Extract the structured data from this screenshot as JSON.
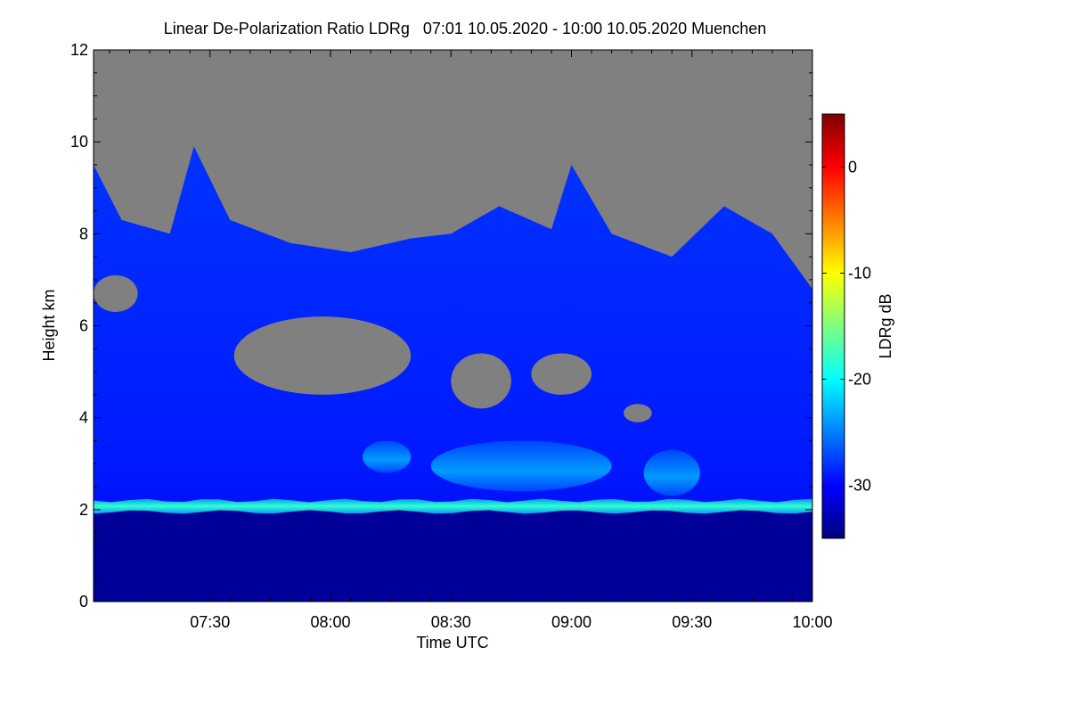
{
  "chart_data": {
    "type": "heatmap",
    "title": "Linear De-Polarization Ratio LDRg   07:01 10.05.2020 - 10:00 10.05.2020 Muenchen",
    "xlabel": "Time UTC",
    "ylabel": "Height km",
    "colorbar_label": "LDRg dB",
    "x_range": [
      "07:01",
      "10:00"
    ],
    "x_ticks": [
      "07:30",
      "08:00",
      "08:30",
      "09:00",
      "09:30",
      "10:00"
    ],
    "y_range": [
      0,
      12
    ],
    "y_ticks": [
      "0",
      "2",
      "4",
      "6",
      "8",
      "10",
      "12"
    ],
    "colorbar_range": [
      -35,
      5
    ],
    "colorbar_ticks": [
      "0",
      "-10",
      "-20",
      "-30"
    ],
    "colormap": [
      "#00007f",
      "#0000ff",
      "#007fff",
      "#00ffff",
      "#7fff7f",
      "#ffff00",
      "#ff7f00",
      "#ff0000",
      "#7f0000"
    ],
    "no_data_color": "#808080",
    "features": {
      "cloud_top_profile_km": [
        {
          "time": "07:01",
          "height": 9.5
        },
        {
          "time": "07:08",
          "height": 8.3
        },
        {
          "time": "07:20",
          "height": 8.0
        },
        {
          "time": "07:26",
          "height": 9.9
        },
        {
          "time": "07:35",
          "height": 8.3
        },
        {
          "time": "07:50",
          "height": 7.8
        },
        {
          "time": "08:05",
          "height": 7.6
        },
        {
          "time": "08:20",
          "height": 7.9
        },
        {
          "time": "08:30",
          "height": 8.0
        },
        {
          "time": "08:42",
          "height": 8.6
        },
        {
          "time": "08:55",
          "height": 8.1
        },
        {
          "time": "09:00",
          "height": 9.5
        },
        {
          "time": "09:10",
          "height": 8.0
        },
        {
          "time": "09:25",
          "height": 7.5
        },
        {
          "time": "09:38",
          "height": 8.6
        },
        {
          "time": "09:50",
          "height": 8.0
        },
        {
          "time": "10:00",
          "height": 6.8
        }
      ],
      "boundary_layer_top_km": 2.1,
      "boundary_layer_ldr_db": -18,
      "cirrus_ldr_db": -29,
      "below_layer_ldr_db": -34,
      "clear_pockets": [
        {
          "time_start": "07:01",
          "time_end": "07:12",
          "height_low": 6.3,
          "height_high": 7.1
        },
        {
          "time_start": "07:36",
          "time_end": "08:20",
          "height_low": 4.5,
          "height_high": 6.2
        },
        {
          "time_start": "08:30",
          "time_end": "08:45",
          "height_low": 4.2,
          "height_high": 5.4
        },
        {
          "time_start": "08:50",
          "time_end": "09:05",
          "height_low": 4.5,
          "height_high": 5.4
        },
        {
          "time_start": "09:13",
          "time_end": "09:20",
          "height_low": 3.9,
          "height_high": 4.3
        }
      ],
      "mid_level_enhanced_ldr": [
        {
          "time_start": "08:08",
          "time_end": "08:20",
          "height_low": 2.8,
          "height_high": 3.5
        },
        {
          "time_start": "08:25",
          "time_end": "09:10",
          "height_low": 2.4,
          "height_high": 3.5
        },
        {
          "time_start": "09:18",
          "time_end": "09:32",
          "height_low": 2.3,
          "height_high": 3.3
        }
      ]
    }
  }
}
